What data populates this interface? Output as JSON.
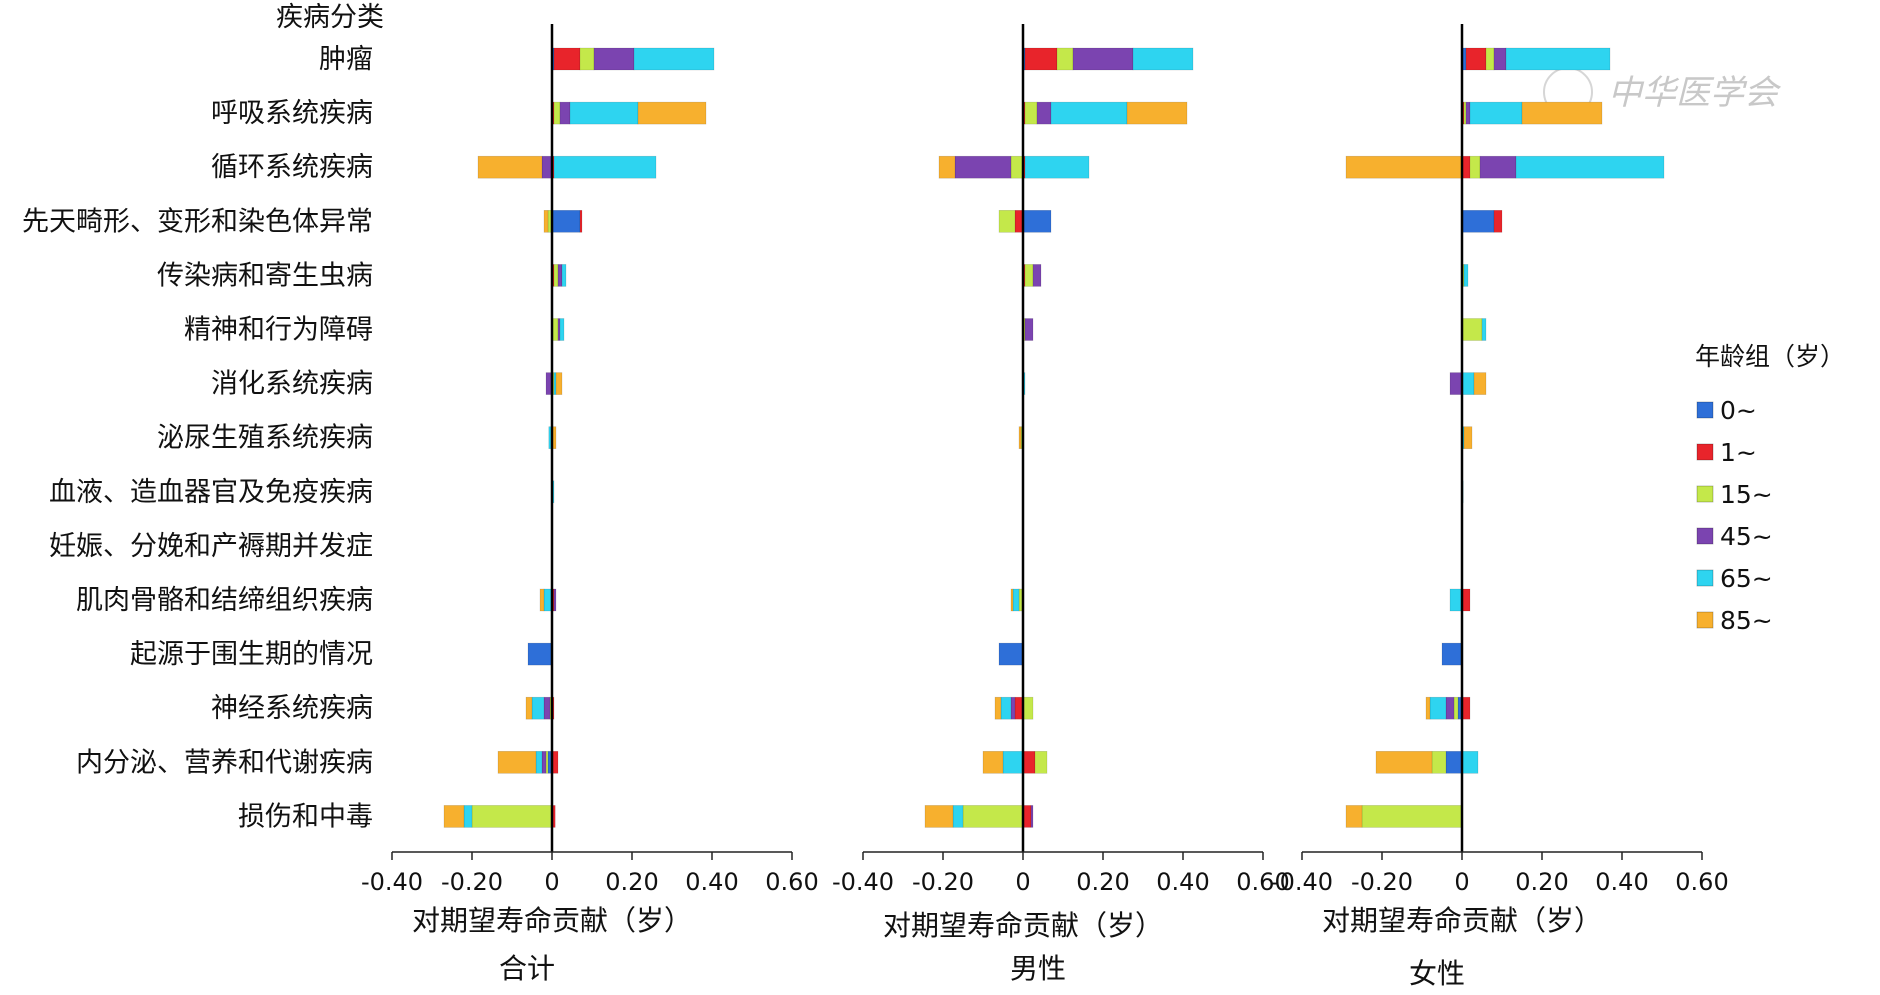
{
  "category_header": "疾病分类",
  "watermark": "中华医学会",
  "legend": {
    "title": "年龄组（岁）",
    "items": [
      {
        "label": "0~",
        "color": "#2E6FD8"
      },
      {
        "label": "1~",
        "color": "#E8242B"
      },
      {
        "label": "15~",
        "color": "#C4E84A"
      },
      {
        "label": "45~",
        "color": "#7B44B0"
      },
      {
        "label": "65~",
        "color": "#2ED4F0"
      },
      {
        "label": "85~",
        "color": "#F7B02E"
      }
    ]
  },
  "chart_data": [
    {
      "type": "bar",
      "orientation": "horizontal",
      "stacked": true,
      "title": "合计",
      "xlabel": "对期望寿命贡献（岁）",
      "xlim": [
        -0.4,
        0.6
      ],
      "xticks": [
        "-0.40",
        "-0.20",
        "0",
        "0.20",
        "0.40",
        "0.60"
      ],
      "categories": [
        "肿瘤",
        "呼吸系统疾病",
        "循环系统疾病",
        "先天畸形、变形和染色体异常",
        "传染病和寄生虫病",
        "精神和行为障碍",
        "消化系统疾病",
        "泌尿生殖系统疾病",
        "血液、造血器官及免疫疾病",
        "妊娠、分娩和产褥期并发症",
        "肌肉骨骼和结缔组织疾病",
        "起源于围生期的情况",
        "神经系统疾病",
        "内分泌、营养和代谢疾病",
        "损伤和中毒"
      ],
      "series": [
        {
          "name": "0~",
          "values": [
            0.005,
            0.0,
            0.0,
            0.07,
            0.0,
            0.0,
            0.0,
            0.0,
            0.0,
            0.0,
            0.0,
            -0.06,
            0.0,
            -0.01,
            0.0
          ]
        },
        {
          "name": "1~",
          "values": [
            0.065,
            0.005,
            0.005,
            0.005,
            0.005,
            0.0,
            0.0,
            0.0,
            0.0,
            0.0,
            0.005,
            0.0,
            0.005,
            0.015,
            0.008
          ]
        },
        {
          "name": "15~",
          "values": [
            0.035,
            0.015,
            0.0,
            -0.01,
            0.01,
            0.015,
            0.005,
            0.0,
            0.0,
            0.0,
            0.0,
            0.0,
            -0.005,
            -0.005,
            -0.2
          ]
        },
        {
          "name": "45~",
          "values": [
            0.1,
            0.025,
            -0.025,
            0.0,
            0.01,
            0.005,
            -0.015,
            0.0,
            0.0,
            0.0,
            0.005,
            0.0,
            -0.015,
            -0.01,
            0.0
          ]
        },
        {
          "name": "65~",
          "values": [
            0.2,
            0.17,
            0.255,
            0.0,
            0.01,
            0.01,
            0.005,
            -0.008,
            0.005,
            0.0,
            -0.02,
            0.0,
            -0.03,
            -0.015,
            -0.02
          ]
        },
        {
          "name": "85~",
          "values": [
            0.0,
            0.17,
            -0.16,
            -0.01,
            0.0,
            0.0,
            0.015,
            0.01,
            0.0,
            0.0,
            -0.01,
            0.0,
            -0.015,
            -0.095,
            -0.05
          ]
        }
      ]
    },
    {
      "type": "bar",
      "orientation": "horizontal",
      "stacked": true,
      "title": "男性",
      "xlabel": "对期望寿命贡献（岁）",
      "xlim": [
        -0.4,
        0.6
      ],
      "xticks": [
        "-0.40",
        "-0.20",
        "0",
        "0.20",
        "0.40",
        "0.60"
      ],
      "categories": [
        "肿瘤",
        "呼吸系统疾病",
        "循环系统疾病",
        "先天畸形、变形和染色体异常",
        "传染病和寄生虫病",
        "精神和行为障碍",
        "消化系统疾病",
        "泌尿生殖系统疾病",
        "血液、造血器官及免疫疾病",
        "妊娠、分娩和产褥期并发症",
        "肌肉骨骼和结缔组织疾病",
        "起源于围生期的情况",
        "神经系统疾病",
        "内分泌、营养和代谢疾病",
        "损伤和中毒"
      ],
      "series": [
        {
          "name": "0~",
          "values": [
            0.005,
            0.0,
            0.0,
            0.07,
            0.0,
            0.0,
            0.0,
            0.0,
            0.0,
            0.0,
            0.0,
            -0.06,
            0.0,
            0.0,
            0.0
          ]
        },
        {
          "name": "1~",
          "values": [
            0.08,
            0.005,
            0.005,
            -0.02,
            0.005,
            0.0,
            0.0,
            0.0,
            0.0,
            0.0,
            0.0,
            0.0,
            -0.02,
            0.03,
            0.02
          ]
        },
        {
          "name": "15~",
          "values": [
            0.04,
            0.03,
            -0.03,
            -0.04,
            0.02,
            0.005,
            0.0,
            -0.005,
            0.0,
            0.0,
            -0.01,
            0.0,
            0.025,
            0.03,
            -0.15
          ]
        },
        {
          "name": "45~",
          "values": [
            0.15,
            0.035,
            -0.14,
            0.0,
            0.02,
            0.02,
            0.0,
            0.0,
            0.0,
            0.0,
            0.0,
            0.0,
            -0.01,
            0.0,
            0.005
          ]
        },
        {
          "name": "65~",
          "values": [
            0.15,
            0.19,
            0.16,
            0.0,
            0.0,
            0.0,
            0.005,
            0.0,
            0.0,
            0.0,
            -0.015,
            0.0,
            -0.025,
            -0.05,
            -0.025
          ]
        },
        {
          "name": "85~",
          "values": [
            0.0,
            0.15,
            -0.04,
            0.0,
            0.0,
            0.0,
            0.0,
            -0.005,
            0.0,
            0.0,
            -0.005,
            0.0,
            -0.015,
            -0.05,
            -0.07
          ]
        }
      ]
    },
    {
      "type": "bar",
      "orientation": "horizontal",
      "stacked": true,
      "title": "女性",
      "xlabel": "对期望寿命贡献（岁）",
      "xlim": [
        -0.4,
        0.6
      ],
      "xticks": [
        "-0.40",
        "-0.20",
        "0",
        "0.20",
        "0.40",
        "0.60"
      ],
      "categories": [
        "肿瘤",
        "呼吸系统疾病",
        "循环系统疾病",
        "先天畸形、变形和染色体异常",
        "传染病和寄生虫病",
        "精神和行为障碍",
        "消化系统疾病",
        "泌尿生殖系统疾病",
        "血液、造血器官及免疫疾病",
        "妊娠、分娩和产褥期并发症",
        "肌肉骨骼和结缔组织疾病",
        "起源于围生期的情况",
        "神经系统疾病",
        "内分泌、营养和代谢疾病",
        "损伤和中毒"
      ],
      "series": [
        {
          "name": "0~",
          "values": [
            0.01,
            0.0,
            0.0,
            0.08,
            0.0,
            0.0,
            0.0,
            0.0,
            0.0,
            0.0,
            0.0,
            -0.05,
            -0.01,
            -0.04,
            0.0
          ]
        },
        {
          "name": "1~",
          "values": [
            0.05,
            0.005,
            0.02,
            0.02,
            0.0,
            0.0,
            0.0,
            0.0,
            0.0,
            0.0,
            0.02,
            0.0,
            0.02,
            0.0,
            0.0
          ]
        },
        {
          "name": "15~",
          "values": [
            0.02,
            0.005,
            0.025,
            0.0,
            0.005,
            0.05,
            0.0,
            0.0,
            0.0,
            0.0,
            0.0,
            0.0,
            -0.01,
            -0.035,
            -0.25
          ]
        },
        {
          "name": "45~",
          "values": [
            0.03,
            0.01,
            0.09,
            0.0,
            0.0,
            0.0,
            -0.03,
            0.0,
            0.0,
            0.0,
            0.0,
            0.0,
            -0.02,
            0.0,
            0.0
          ]
        },
        {
          "name": "65~",
          "values": [
            0.26,
            0.13,
            0.37,
            0.0,
            0.01,
            0.01,
            0.03,
            0.005,
            0.003,
            0.0,
            -0.03,
            0.0,
            -0.04,
            0.04,
            0.0
          ]
        },
        {
          "name": "85~",
          "values": [
            0.0,
            0.2,
            -0.29,
            0.0,
            0.0,
            0.0,
            0.03,
            0.02,
            0.0,
            0.0,
            0.0,
            0.0,
            -0.01,
            -0.14,
            -0.04
          ]
        }
      ]
    }
  ]
}
